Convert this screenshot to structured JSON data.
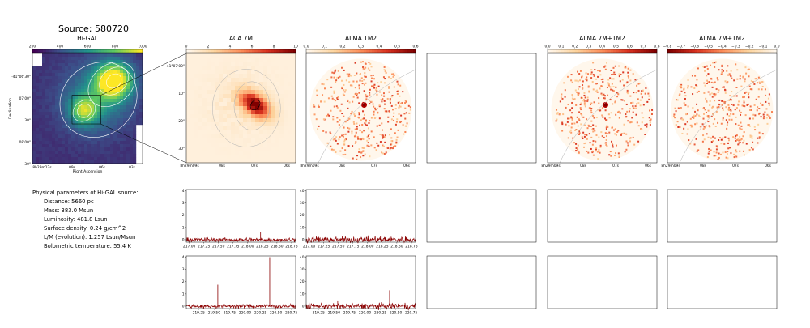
{
  "source_title": "Source: 580720",
  "panel_titles": {
    "higal": "Hi-GAL",
    "aca7m": "ACA 7M",
    "almatm2": "ALMA TM2",
    "combo1": "ALMA 7M+TM2",
    "combo2": "ALMA 7M+TM2"
  },
  "physical": {
    "header": "Physical parameters of Hi-GAL source:",
    "lines": [
      "Distance: 5660 pc",
      "Mass: 383.0 Msun",
      "Luminosity: 481.8 Lsun",
      "Surface density: 0.24 g/cm^2",
      "L/M (evolution): 1.257 Lsun/Msun",
      "Bolometric temperature: 55.4 K"
    ]
  },
  "colors": {
    "spectrum": "#8b0000",
    "contour_white": "#ffffff",
    "contour_grey": "#b0b0b0"
  },
  "chart_data": [
    {
      "type": "heatmap",
      "name": "Hi-GAL",
      "colormap": "viridis",
      "colorbar_ticks": [
        "200",
        "400",
        "600",
        "800",
        "1000"
      ],
      "xlabel": "Right Ascension",
      "ylabel": "Declination",
      "xticks": [
        "8h29m12s",
        "09s",
        "06s",
        "03s"
      ],
      "yticks": [
        "-41°06'30\"",
        "07'00\"",
        "30\"",
        "08'00\"",
        "30\""
      ]
    },
    {
      "type": "heatmap",
      "name": "ACA 7M",
      "colormap": "OrRd",
      "colorbar_ticks": [
        "0",
        "2",
        "4",
        "6",
        "8",
        "10"
      ],
      "xticks": [
        "8h29m09s",
        "08s",
        "07s",
        "06s"
      ],
      "yticks": [
        "-41°07'00\"",
        "10\"",
        "20\"",
        "30\""
      ]
    },
    {
      "type": "heatmap",
      "name": "ALMA TM2",
      "colormap": "OrRd",
      "colorbar_ticks": [
        "0.0",
        "0.1",
        "0.2",
        "0.3",
        "0.4",
        "0.5",
        "0.6"
      ],
      "xticks": [
        "8h29m09s",
        "08s",
        "07s",
        "06s"
      ]
    },
    {
      "type": "heatmap",
      "name": "ALMA 7M+TM2",
      "colormap": "OrRd",
      "colorbar_ticks": [
        "0.0",
        "0.1",
        "0.2",
        "0.3",
        "0.4",
        "0.5",
        "0.6",
        "0.7",
        "0.8"
      ],
      "xticks": [
        "8h29m09s",
        "08s",
        "07s",
        "06s"
      ]
    },
    {
      "type": "heatmap",
      "name": "ALMA 7M+TM2",
      "colormap": "OrRd_r",
      "colorbar_ticks": [
        "−0.8",
        "−0.7",
        "−0.6",
        "−0.5",
        "−0.4",
        "−0.3",
        "−0.2",
        "−0.1",
        "0.0"
      ],
      "xticks": [
        "8h29m09s",
        "08s",
        "07s",
        "06s"
      ]
    },
    {
      "type": "line",
      "name": "ACA 7M spectrum, window 1",
      "xlim": [
        216.95,
        218.82
      ],
      "ylim": [
        -0.2,
        4.1
      ],
      "xticks": [
        "217.00",
        "217.25",
        "217.50",
        "217.75",
        "218.00",
        "218.25",
        "218.50",
        "218.75"
      ],
      "yticks": [
        "0",
        "1",
        "2",
        "3",
        "4"
      ],
      "baseline": 0.0,
      "noise": 0.08,
      "peaks": [
        {
          "x": 218.22,
          "y": 0.6
        }
      ]
    },
    {
      "type": "line",
      "name": "ALMA TM2 spectrum, window 1",
      "xlim": [
        216.95,
        218.82
      ],
      "ylim": [
        -2,
        41
      ],
      "xticks": [
        "217.00",
        "217.25",
        "217.50",
        "217.75",
        "218.00",
        "218.25",
        "218.50",
        "218.75"
      ],
      "yticks": [
        "0",
        "10",
        "20",
        "30",
        "40"
      ],
      "baseline": 0.0,
      "noise": 1.2,
      "peaks": [
        {
          "x": 218.22,
          "y": 3
        }
      ]
    },
    {
      "type": "line",
      "name": "ACA 7M spectrum, window 2",
      "xlim": [
        219.05,
        220.82
      ],
      "ylim": [
        -0.2,
        4.1
      ],
      "xticks": [
        "219.25",
        "219.50",
        "219.75",
        "220.00",
        "220.25",
        "220.50",
        "220.75"
      ],
      "yticks": [
        "0",
        "1",
        "2",
        "3",
        "4"
      ],
      "baseline": 0.0,
      "noise": 0.08,
      "peaks": [
        {
          "x": 219.56,
          "y": 1.75
        },
        {
          "x": 220.4,
          "y": 4.0
        }
      ]
    },
    {
      "type": "line",
      "name": "ALMA TM2 spectrum, window 2",
      "xlim": [
        219.05,
        220.82
      ],
      "ylim": [
        -2,
        41
      ],
      "xticks": [
        "219.25",
        "219.50",
        "219.75",
        "220.00",
        "220.25",
        "220.50",
        "220.75"
      ],
      "yticks": [
        "0",
        "10",
        "20",
        "30",
        "40"
      ],
      "baseline": 0.0,
      "noise": 1.2,
      "peaks": [
        {
          "x": 219.56,
          "y": 4
        },
        {
          "x": 220.4,
          "y": 13
        }
      ]
    }
  ]
}
